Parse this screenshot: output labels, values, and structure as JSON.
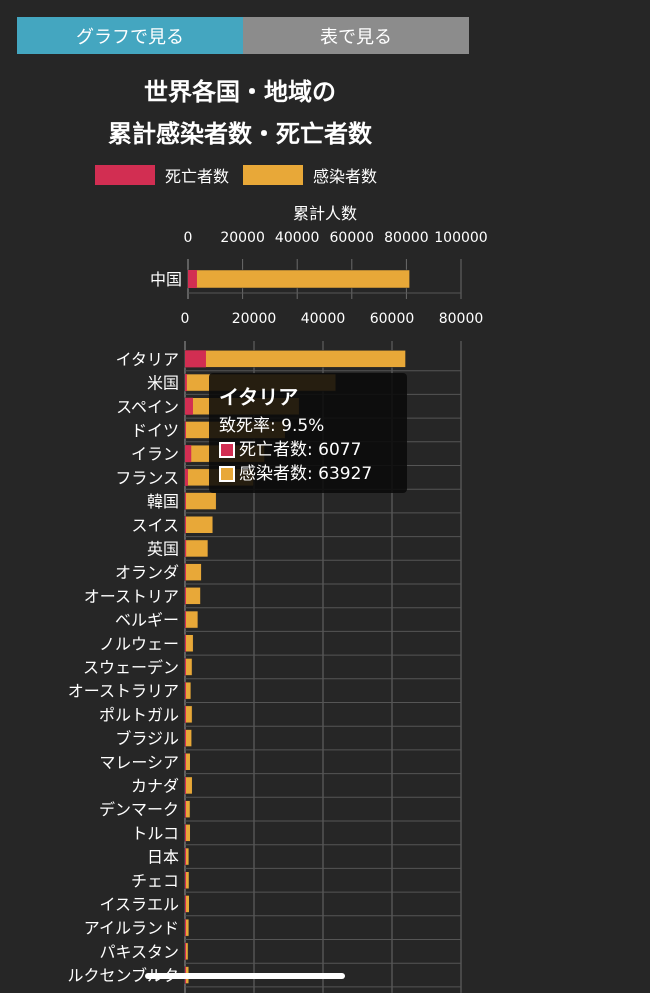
{
  "tabs": {
    "chart_label": "グラフで見る",
    "table_label": "表で見る"
  },
  "title": {
    "line1": "世界各国・地域の",
    "line2": "累計感染者数・死亡者数"
  },
  "legend": {
    "deaths_label": "死亡者数",
    "deaths_color": "#d22e52",
    "cases_label": "感染者数",
    "cases_color": "#e8a838"
  },
  "axis_unit": "累計人数",
  "tooltip": {
    "country": "イタリア",
    "rate_text": "致死率: 9.5%",
    "deaths_text": "死亡者数: 6077",
    "cases_text": "感染者数: 63927"
  },
  "chart_data": [
    {
      "type": "bar",
      "orientation": "horizontal",
      "stacked": true,
      "categories": [
        "中国"
      ],
      "series": [
        {
          "name": "死亡者数",
          "values": [
            3277
          ]
        },
        {
          "name": "感染者数",
          "values": [
            81171
          ]
        }
      ],
      "xlim": [
        0,
        100000
      ],
      "xticks": [
        "0",
        "20000",
        "40000",
        "60000",
        "80000",
        "100000"
      ],
      "grid": true
    },
    {
      "type": "bar",
      "orientation": "horizontal",
      "stacked": true,
      "categories": [
        "イタリア",
        "米国",
        "スペイン",
        "ドイツ",
        "イラン",
        "フランス",
        "韓国",
        "スイス",
        "英国",
        "オランダ",
        "オーストリア",
        "ベルギー",
        "ノルウェー",
        "スウェーデン",
        "オーストラリア",
        "ポルトガル",
        "ブラジル",
        "マレーシア",
        "カナダ",
        "デンマーク",
        "トルコ",
        "日本",
        "チェコ",
        "イスラエル",
        "アイルランド",
        "パキスタン",
        "ルクセンブルク"
      ],
      "series": [
        {
          "name": "死亡者数",
          "values": [
            6077,
            550,
            2311,
            94,
            1812,
            860,
            111,
            153,
            335,
            213,
            28,
            75,
            10,
            21,
            7,
            23,
            25,
            10,
            24,
            24,
            30,
            42,
            1,
            1,
            6,
            3,
            4
          ]
        },
        {
          "name": "感染者数",
          "values": [
            63927,
            43700,
            33089,
            29056,
            23049,
            19856,
            9037,
            8060,
            6650,
            4749,
            4486,
            3743,
            2371,
            2046,
            1709,
            2060,
            1924,
            1518,
            2091,
            1460,
            1529,
            1128,
            1165,
            1238,
            1125,
            887,
            1099
          ]
        }
      ],
      "xlim": [
        0,
        80000
      ],
      "xticks": [
        "0",
        "20000",
        "40000",
        "60000",
        "80000"
      ],
      "grid": true
    }
  ]
}
